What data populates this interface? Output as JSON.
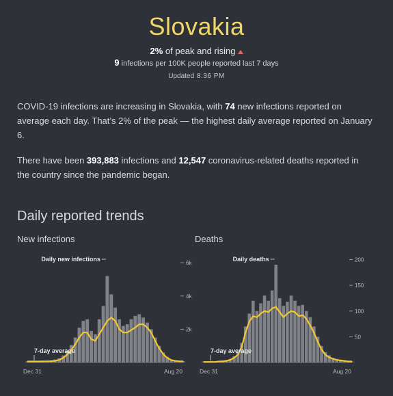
{
  "header": {
    "title": "Slovakia",
    "peak_pct": "2%",
    "peak_text": "of peak and rising",
    "infections_count": "9",
    "infections_text": "infections per 100K people reported last 7 days",
    "updated_label": "Updated",
    "updated_time": "8:36 PM"
  },
  "summary": {
    "p1_a": "COVID-19 infections are increasing in Slovakia, with",
    "p1_avg": "74",
    "p1_b": "new infections reported on average each day. That’s 2% of the peak — the highest daily average reported on January 6.",
    "p2_a": "There have been",
    "p2_infections": "393,883",
    "p2_b": "infections and",
    "p2_deaths": "12,547",
    "p2_c": "coronavirus-related deaths reported in the country since the pandemic began."
  },
  "section_title": "Daily reported trends",
  "colors": {
    "average_line": "#f2c731",
    "bars": "#8e9196",
    "text": "#d7d9dc"
  },
  "chart_data": [
    {
      "type": "area",
      "title": "New infections",
      "x_start_label": "Dec 31",
      "x_end_label": "Aug 20",
      "ylim": [
        0,
        6500
      ],
      "y_ticks": [
        2000,
        4000,
        6000
      ],
      "y_tick_labels": [
        "2k",
        "4k",
        "6k"
      ],
      "daily_label": "Daily new infections",
      "avg_label": "7-day average",
      "series": [
        {
          "name": "7-day average",
          "values": [
            60,
            60,
            60,
            62,
            65,
            70,
            80,
            100,
            160,
            280,
            480,
            750,
            1100,
            1500,
            1800,
            1800,
            1400,
            1300,
            1700,
            2100,
            2500,
            2700,
            2500,
            2000,
            1800,
            1800,
            1950,
            2100,
            2300,
            2300,
            2100,
            1800,
            1300,
            850,
            500,
            280,
            150,
            95,
            75,
            70
          ]
        },
        {
          "name": "Daily",
          "values": [
            70,
            80,
            60,
            90,
            80,
            110,
            130,
            180,
            250,
            420,
            700,
            1050,
            1500,
            2100,
            2500,
            2600,
            1900,
            1700,
            2600,
            3400,
            5200,
            4100,
            3300,
            2600,
            2200,
            2300,
            2600,
            2800,
            2900,
            2700,
            2400,
            2000,
            1500,
            1000,
            600,
            340,
            180,
            120,
            90,
            80
          ]
        }
      ]
    },
    {
      "type": "area",
      "title": "Deaths",
      "x_start_label": "Dec 31",
      "x_end_label": "Aug 20",
      "ylim": [
        0,
        210
      ],
      "y_ticks": [
        50,
        100,
        150,
        200
      ],
      "y_tick_labels": [
        "50",
        "100",
        "150",
        "200"
      ],
      "daily_label": "Daily deaths",
      "avg_label": "7-day average",
      "series": [
        {
          "name": "7-day average",
          "values": [
            1,
            1,
            1,
            1,
            2,
            2,
            3,
            5,
            9,
            15,
            30,
            58,
            80,
            90,
            88,
            95,
            100,
            98,
            105,
            108,
            98,
            88,
            95,
            100,
            98,
            90,
            92,
            85,
            72,
            58,
            40,
            25,
            15,
            10,
            7,
            5,
            4,
            3,
            2,
            2
          ]
        },
        {
          "name": "Daily",
          "values": [
            2,
            1,
            3,
            2,
            3,
            4,
            5,
            7,
            12,
            20,
            38,
            70,
            95,
            120,
            100,
            115,
            130,
            120,
            140,
            190,
            125,
            110,
            118,
            130,
            120,
            110,
            112,
            100,
            88,
            70,
            50,
            32,
            20,
            14,
            9,
            7,
            5,
            4,
            3,
            2
          ]
        }
      ]
    }
  ]
}
